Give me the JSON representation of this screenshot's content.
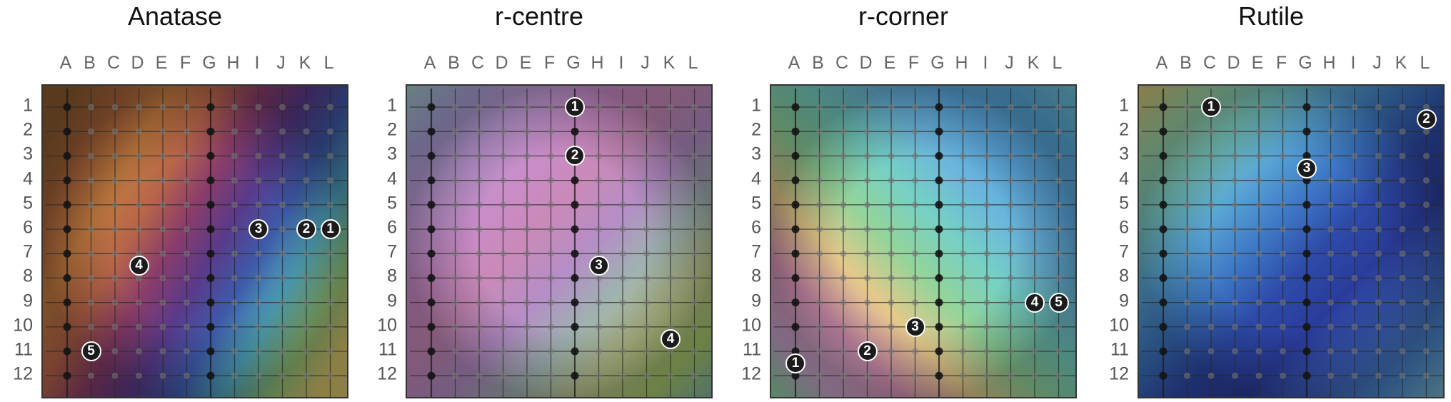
{
  "columns": [
    "A",
    "B",
    "C",
    "D",
    "E",
    "F",
    "G",
    "H",
    "I",
    "J",
    "K",
    "L"
  ],
  "rows": [
    "1",
    "2",
    "3",
    "4",
    "5",
    "6",
    "7",
    "8",
    "9",
    "10",
    "11",
    "12"
  ],
  "panels": [
    {
      "title": "Anatase",
      "colors": [
        "#8a5a2e",
        "#a9643a",
        "#c07a3f",
        "#b7654a",
        "#8a3d6a",
        "#5a3a8a",
        "#3e5aa8",
        "#4fa2b8",
        "#8fc07a",
        "#d7c36a"
      ],
      "markers": [
        {
          "label": "1",
          "col": "L",
          "row": "6"
        },
        {
          "label": "2",
          "col": "K",
          "row": "6"
        },
        {
          "label": "3",
          "col": "I",
          "row": "6"
        },
        {
          "label": "4",
          "col": "D",
          "row": "7.5"
        },
        {
          "label": "5",
          "col": "B",
          "row": "11"
        }
      ]
    },
    {
      "title": "r-centre",
      "colors": [
        "#9fc6c8",
        "#a7a0d6",
        "#c19bd6",
        "#c98cc6",
        "#c98ab8",
        "#b48ec6",
        "#9fb2b0",
        "#b7c08a",
        "#a6c66c",
        "#7ab0a4"
      ],
      "markers": [
        {
          "label": "1",
          "col": "G",
          "row": "1"
        },
        {
          "label": "2",
          "col": "G",
          "row": "3"
        },
        {
          "label": "3",
          "col": "H",
          "row": "7.5"
        },
        {
          "label": "4",
          "col": "K",
          "row": "10.5"
        }
      ]
    },
    {
      "title": "r-corner",
      "colors": [
        "#7fd19a",
        "#c5a3c9",
        "#d18fb0",
        "#e4c98a",
        "#93d49a",
        "#76d0c4",
        "#6bb6dc",
        "#5aa6dc",
        "#58a8d8",
        "#6fc0d0"
      ],
      "markers": [
        {
          "label": "1",
          "col": "A",
          "row": "11.5"
        },
        {
          "label": "2",
          "col": "D",
          "row": "11"
        },
        {
          "label": "3",
          "col": "F",
          "row": "10"
        },
        {
          "label": "4",
          "col": "K",
          "row": "9"
        },
        {
          "label": "5",
          "col": "L",
          "row": "9"
        }
      ]
    },
    {
      "title": "Rutile",
      "colors": [
        "#d4c070",
        "#9ed0a0",
        "#76c4bc",
        "#58a4d4",
        "#3e78c4",
        "#2e4aa8",
        "#2a3c9a",
        "#3a5cb4",
        "#4a86c8",
        "#7ab4c8"
      ],
      "markers": [
        {
          "label": "1",
          "col": "C",
          "row": "1"
        },
        {
          "label": "2",
          "col": "L",
          "row": "1.5"
        },
        {
          "label": "3",
          "col": "G",
          "row": "3.5"
        }
      ]
    }
  ]
}
